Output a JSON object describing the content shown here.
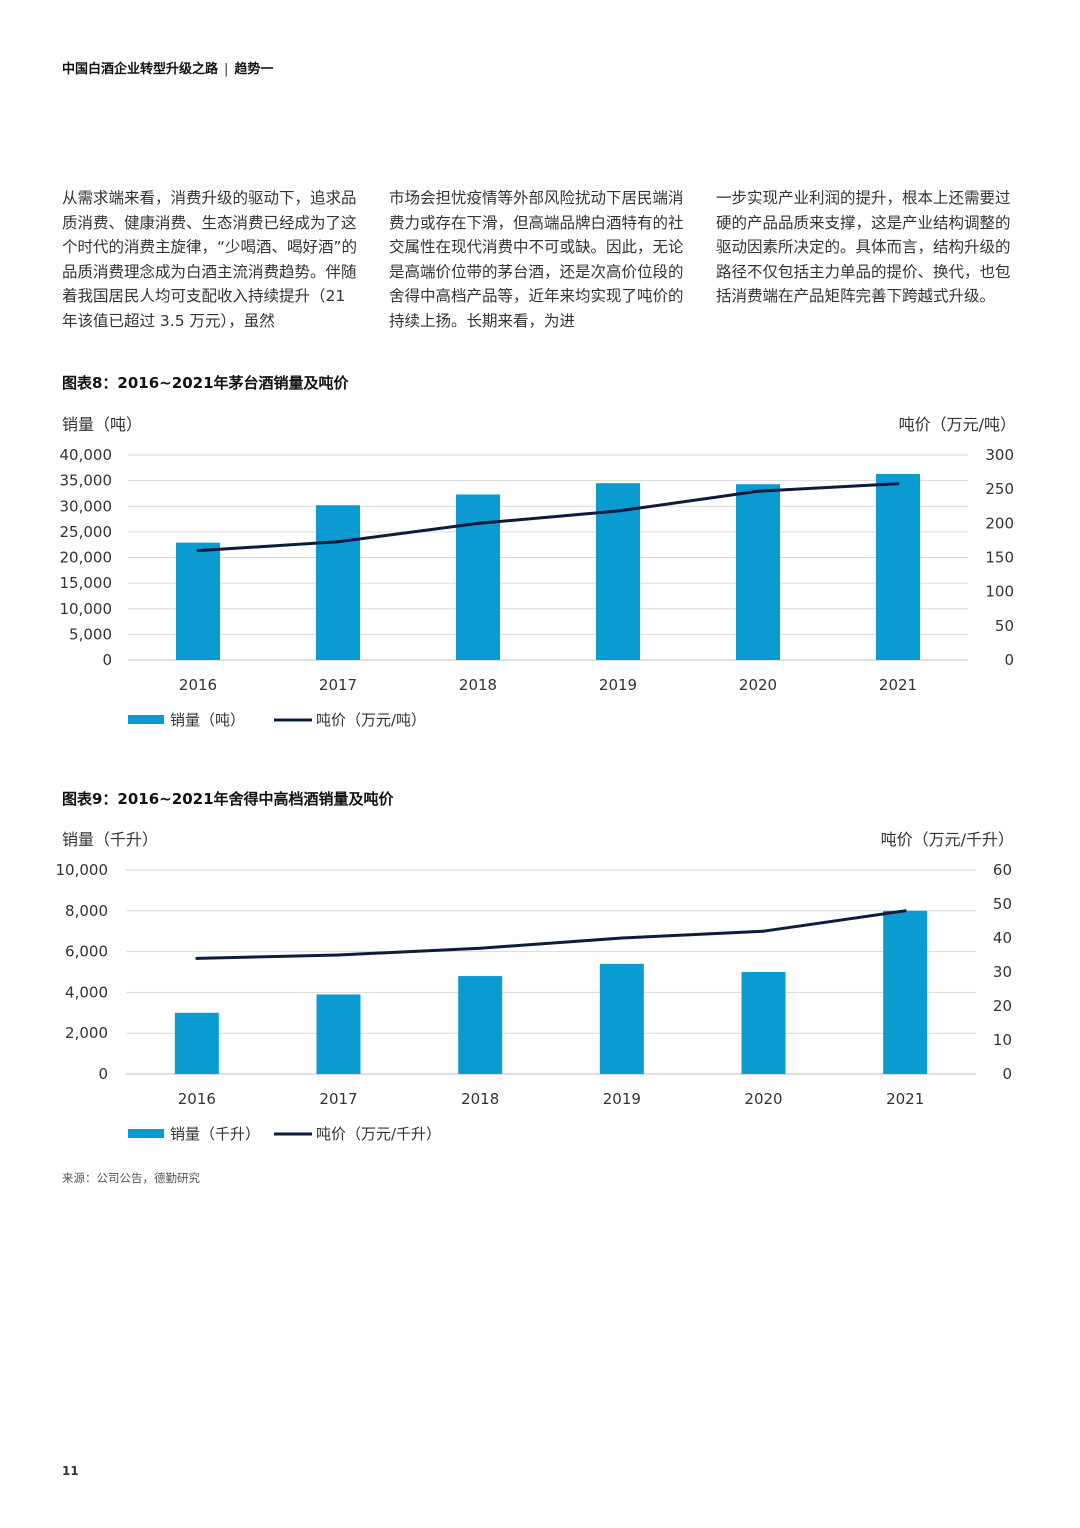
{
  "header": {
    "title": "中国白酒企业转型升级之路",
    "separator": "|",
    "section": "趋势一"
  },
  "body_text": {
    "col1": "从需求端来看，消费升级的驱动下，追求品质消费、健康消费、生态消费已经成为了这个时代的消费主旋律，“少喝酒、喝好酒”的品质消费理念成为白酒主流消费趋势。伴随着我国居民人均可支配收入持续提升（21 年该值已超过 3.5 万元），虽然",
    "col2": "市场会担忧疫情等外部风险扰动下居民端消费力或存在下滑，但高端品牌白酒特有的社交属性在现代消费中不可或缺。因此，无论是高端价位带的茅台酒，还是次高价位段的舍得中高档产品等，近年来均实现了吨价的持续上扬。长期来看，为进",
    "col3": "一步实现产业利润的提升，根本上还需要过硬的产品品质来支撑，这是产业结构调整的驱动因素所决定的。具体而言，结构升级的路径不仅包括主力单品的提价、换代，也包括消费端在产品矩阵完善下跨越式升级。"
  },
  "colors": {
    "bar": "#0a9bd1",
    "line": "#0d1b3e",
    "grid": "#d9d9d9",
    "axis": "#bfbfbf"
  },
  "chart_data": [
    {
      "type": "bar",
      "title": "图表8：2016~2021年茅台酒销量及吨价",
      "ylabel": "销量（吨）",
      "y2label": "吨价（万元/吨）",
      "categories": [
        "2016",
        "2017",
        "2018",
        "2019",
        "2020",
        "2021"
      ],
      "ylim": [
        0,
        40000
      ],
      "y2lim": [
        0,
        300
      ],
      "yticks": [
        "0",
        "5,000",
        "10,000",
        "15,000",
        "20,000",
        "25,000",
        "30,000",
        "35,000",
        "40,000"
      ],
      "y2ticks": [
        "0",
        "50",
        "100",
        "150",
        "200",
        "250",
        "300"
      ],
      "grid": true,
      "legend": "bottom-left",
      "series": [
        {
          "name": "销量（吨）",
          "type": "bar",
          "axis": "left",
          "values": [
            22900,
            30200,
            32300,
            34500,
            34300,
            36300
          ]
        },
        {
          "name": "吨价（万元/吨）",
          "type": "line",
          "axis": "right",
          "values": [
            160,
            173,
            200,
            218,
            247,
            258
          ]
        }
      ]
    },
    {
      "type": "bar",
      "title": "图表9：2016~2021年舍得中高档酒销量及吨价",
      "ylabel": "销量（千升）",
      "y2label": "吨价（万元/千升）",
      "categories": [
        "2016",
        "2017",
        "2018",
        "2019",
        "2020",
        "2021"
      ],
      "ylim": [
        0,
        10000
      ],
      "y2lim": [
        0,
        60
      ],
      "yticks": [
        "0",
        "2,000",
        "4,000",
        "6,000",
        "8,000",
        "10,000"
      ],
      "y2ticks": [
        "0",
        "10",
        "20",
        "30",
        "40",
        "50",
        "60"
      ],
      "grid": true,
      "legend": "bottom-left",
      "series": [
        {
          "name": "销量（千升）",
          "type": "bar",
          "axis": "left",
          "values": [
            3000,
            3900,
            4800,
            5400,
            5000,
            8000
          ]
        },
        {
          "name": "吨价（万元/千升）",
          "type": "line",
          "axis": "right",
          "values": [
            34,
            35,
            37,
            40,
            42,
            48
          ]
        }
      ]
    }
  ],
  "source": "来源：公司公告，德勤研究",
  "page_number": "11"
}
